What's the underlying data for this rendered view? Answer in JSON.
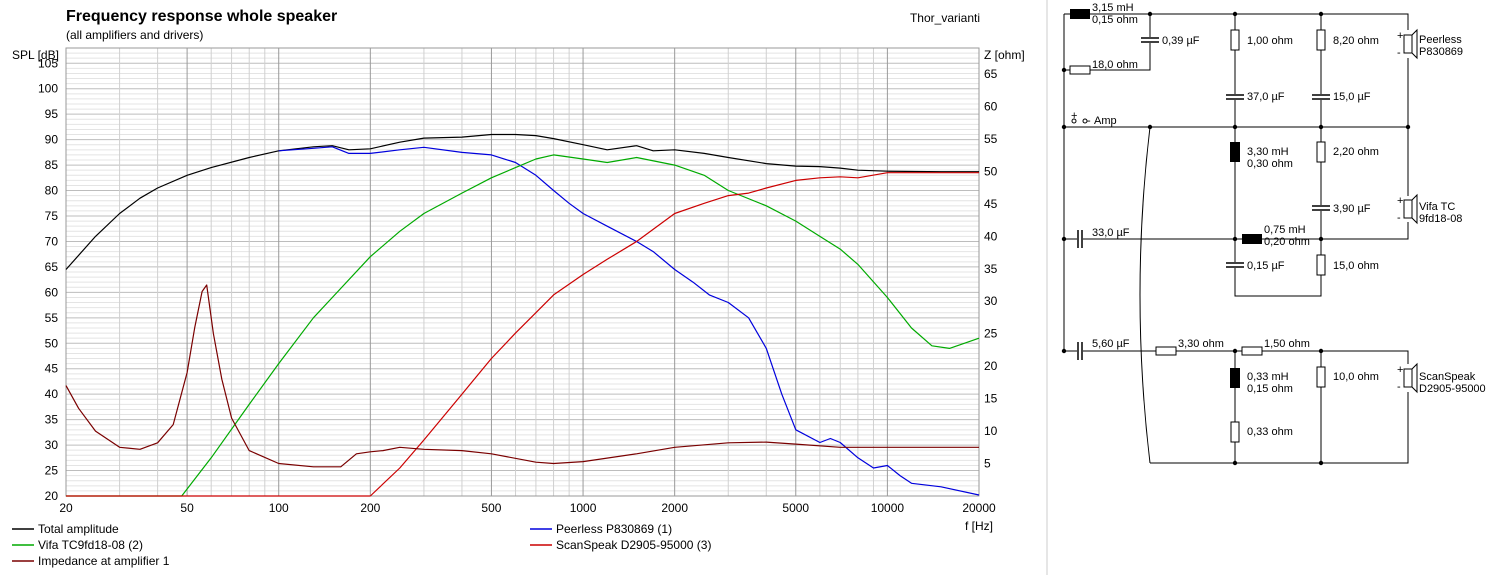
{
  "chart_data": {
    "type": "line",
    "title": "Frequency response whole speaker",
    "subtitle": "(all amplifiers and drivers)",
    "project_label": "Thor_varianti",
    "xlabel": "f [Hz]",
    "ylabel_left": "SPL [dB]",
    "ylabel_right": "Z [ohm]",
    "x_scale": "log",
    "xlim": [
      20,
      20000
    ],
    "ylim_left": [
      20,
      108
    ],
    "ylim_right": [
      0,
      69
    ],
    "x_ticks": [
      20,
      50,
      100,
      200,
      500,
      1000,
      2000,
      5000,
      10000,
      20000
    ],
    "y_ticks_left": [
      20,
      25,
      30,
      35,
      40,
      45,
      50,
      55,
      60,
      65,
      70,
      75,
      80,
      85,
      90,
      95,
      100,
      105
    ],
    "y_ticks_right": [
      5,
      10,
      15,
      20,
      25,
      30,
      35,
      40,
      45,
      50,
      55,
      60,
      65
    ],
    "grid": true,
    "legend_position": "bottom",
    "series": [
      {
        "name": "Total amplitude",
        "color": "#000000",
        "axis": "left",
        "x": [
          20,
          25,
          30,
          35,
          40,
          50,
          60,
          80,
          100,
          130,
          150,
          170,
          200,
          250,
          300,
          400,
          500,
          600,
          700,
          800,
          1000,
          1200,
          1500,
          1700,
          2000,
          2500,
          3000,
          4000,
          5000,
          6000,
          7000,
          8000,
          10000,
          15000,
          20000
        ],
        "values": [
          64.5,
          71,
          75.5,
          78.5,
          80.5,
          83,
          84.5,
          86.5,
          87.8,
          88.6,
          88.8,
          88,
          88.2,
          89.5,
          90.3,
          90.5,
          91,
          91,
          90.8,
          90.2,
          89,
          88,
          88.8,
          87.8,
          88,
          87.3,
          86.5,
          85.3,
          84.8,
          84.7,
          84.4,
          84,
          83.8,
          83.7,
          83.7
        ]
      },
      {
        "name": "Peerless P830869 (1)",
        "color": "#0000dd",
        "axis": "left",
        "x": [
          100,
          130,
          150,
          170,
          200,
          250,
          300,
          400,
          500,
          600,
          700,
          800,
          900,
          1000,
          1200,
          1500,
          1700,
          2000,
          2300,
          2600,
          3000,
          3500,
          4000,
          4500,
          5000,
          6000,
          6500,
          7000,
          8000,
          9000,
          10000,
          11000,
          12000,
          15000,
          20000
        ],
        "values": [
          87.8,
          88.3,
          88.6,
          87.3,
          87.3,
          88,
          88.5,
          87.5,
          87,
          85.5,
          83,
          80,
          77.5,
          75.5,
          73,
          70,
          68,
          64.5,
          62,
          59.5,
          58,
          55,
          49,
          40,
          33,
          30.5,
          31.3,
          30.5,
          27.5,
          25.5,
          26,
          24,
          22.5,
          21.8,
          20.2
        ]
      },
      {
        "name": "Vifa TC9fd18-08 (2)",
        "color": "#00aa00",
        "axis": "left",
        "x": [
          20,
          48,
          60,
          80,
          100,
          130,
          150,
          200,
          250,
          300,
          400,
          500,
          600,
          700,
          800,
          1000,
          1200,
          1500,
          2000,
          2500,
          3000,
          4000,
          5000,
          6000,
          7000,
          8000,
          10000,
          12000,
          14000,
          16000,
          20000
        ],
        "values": [
          20,
          20,
          27.5,
          38,
          46,
          55,
          59,
          67,
          72,
          75.5,
          79.5,
          82.5,
          84.5,
          86.2,
          87,
          86.2,
          85.5,
          86.5,
          85,
          83,
          80,
          77,
          74,
          71,
          68.5,
          65.5,
          59,
          53,
          49.5,
          49,
          51
        ]
      },
      {
        "name": "ScanSpeak D2905-95000 (3)",
        "color": "#cc0000",
        "axis": "left",
        "x": [
          20,
          200,
          250,
          300,
          400,
          500,
          600,
          700,
          800,
          1000,
          1200,
          1500,
          2000,
          2500,
          3000,
          3500,
          4000,
          5000,
          6000,
          7000,
          8000,
          10000,
          15000,
          20000
        ],
        "values": [
          20,
          20,
          25.5,
          31,
          40,
          47,
          52,
          56,
          59.5,
          63.5,
          66.5,
          70,
          75.5,
          77.5,
          79,
          79.5,
          80.5,
          82,
          82.5,
          82.7,
          82.5,
          83.5,
          83.5,
          83.5
        ]
      },
      {
        "name": "Impedance at amplifier 1",
        "color": "#7a0000",
        "axis": "right",
        "x": [
          20,
          22,
          25,
          30,
          35,
          40,
          45,
          50,
          53,
          56,
          58,
          61,
          65,
          70,
          80,
          100,
          130,
          160,
          180,
          200,
          220,
          250,
          300,
          400,
          500,
          700,
          800,
          1000,
          1500,
          2000,
          3000,
          4000,
          5000,
          7000,
          10000,
          20000
        ],
        "values": [
          17,
          13.5,
          10,
          7.5,
          7.2,
          8.2,
          11,
          19,
          26,
          31.5,
          32.5,
          25,
          18,
          12,
          7,
          5,
          4.5,
          4.5,
          6.5,
          6.8,
          7,
          7.5,
          7.2,
          7,
          6.5,
          5.2,
          5,
          5.3,
          6.5,
          7.5,
          8.2,
          8.3,
          8,
          7.5,
          7.5,
          7.5
        ]
      }
    ]
  },
  "schematic": {
    "amp_label": "Amp",
    "amp_plus": "+",
    "amp_minus": "-",
    "components": {
      "top_inductor": [
        "3,15 mH",
        "0,15 ohm"
      ],
      "top_resistor": "18,0 ohm",
      "top_cap": "0,39 µF",
      "peer_r1": "1,00 ohm",
      "peer_c1": "37,0 µF",
      "peer_r2": "8,20 ohm",
      "peer_c2": "15,0 µF",
      "vifa_l1": [
        "3,30 mH",
        "0,30 ohm"
      ],
      "vifa_r1": "2,20 ohm",
      "vifa_c1": "3,90 µF",
      "vifa_series_cap": "33,0 µF",
      "vifa_l2": [
        "0,75 mH",
        "0,20 ohm"
      ],
      "vifa_c2": "0,15 µF",
      "vifa_r2": "15,0 ohm",
      "scan_cap": "5,60 µF",
      "scan_r1": "3,30 ohm",
      "scan_r2": "1,50 ohm",
      "scan_l1": [
        "0,33 mH",
        "0,15 ohm"
      ],
      "scan_r3": "0,33 ohm",
      "scan_r4": "10,0 ohm"
    },
    "drivers": [
      {
        "line1": "Peerless",
        "line2": "P830869"
      },
      {
        "line1": "Vifa TC",
        "line2": "9fd18-08"
      },
      {
        "line1": "ScanSpeak",
        "line2": "D2905-95000"
      }
    ]
  }
}
